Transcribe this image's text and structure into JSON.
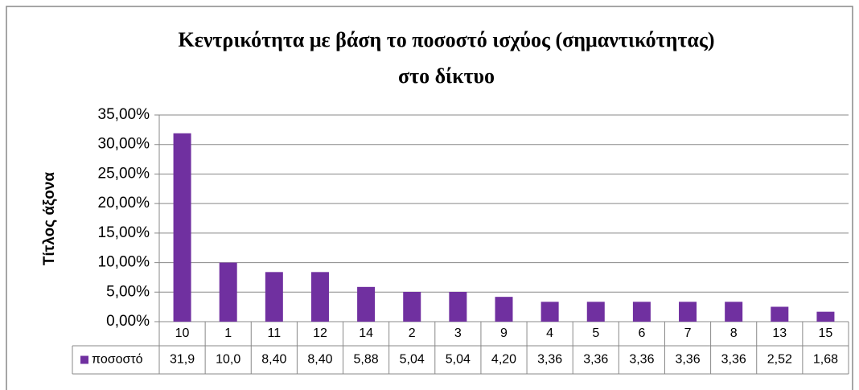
{
  "chart_data": {
    "type": "bar",
    "title": [
      "Κεντρικότητα με βάση το ποσοστό ισχύος (σημαντικότητας)",
      "στο δίκτυο"
    ],
    "y_label": "Τίτλος άξονα",
    "categories": [
      "10",
      "1",
      "11",
      "12",
      "14",
      "2",
      "3",
      "9",
      "4",
      "5",
      "6",
      "7",
      "8",
      "13",
      "15"
    ],
    "series": [
      {
        "name": "ποσοστό",
        "color": "#7030a0",
        "values": [
          31.9,
          10.0,
          8.4,
          8.4,
          5.88,
          5.04,
          5.04,
          4.2,
          3.36,
          3.36,
          3.36,
          3.36,
          3.36,
          2.52,
          1.68
        ],
        "value_labels": [
          "31,9",
          "10,0",
          "8,40",
          "8,40",
          "5,88",
          "5,04",
          "5,04",
          "4,20",
          "3,36",
          "3,36",
          "3,36",
          "3,36",
          "3,36",
          "2,52",
          "1,68"
        ]
      }
    ],
    "ylim": [
      0,
      35
    ],
    "yticks": [
      {
        "value": 0,
        "label": "0,00%"
      },
      {
        "value": 5,
        "label": "5,00%"
      },
      {
        "value": 10,
        "label": "10,00%"
      },
      {
        "value": 15,
        "label": "15,00%"
      },
      {
        "value": 20,
        "label": "20,00%"
      },
      {
        "value": 25,
        "label": "25,00%"
      },
      {
        "value": 30,
        "label": "30,00%"
      },
      {
        "value": 35,
        "label": "35,00%"
      }
    ],
    "grid": true,
    "data_table": true
  }
}
